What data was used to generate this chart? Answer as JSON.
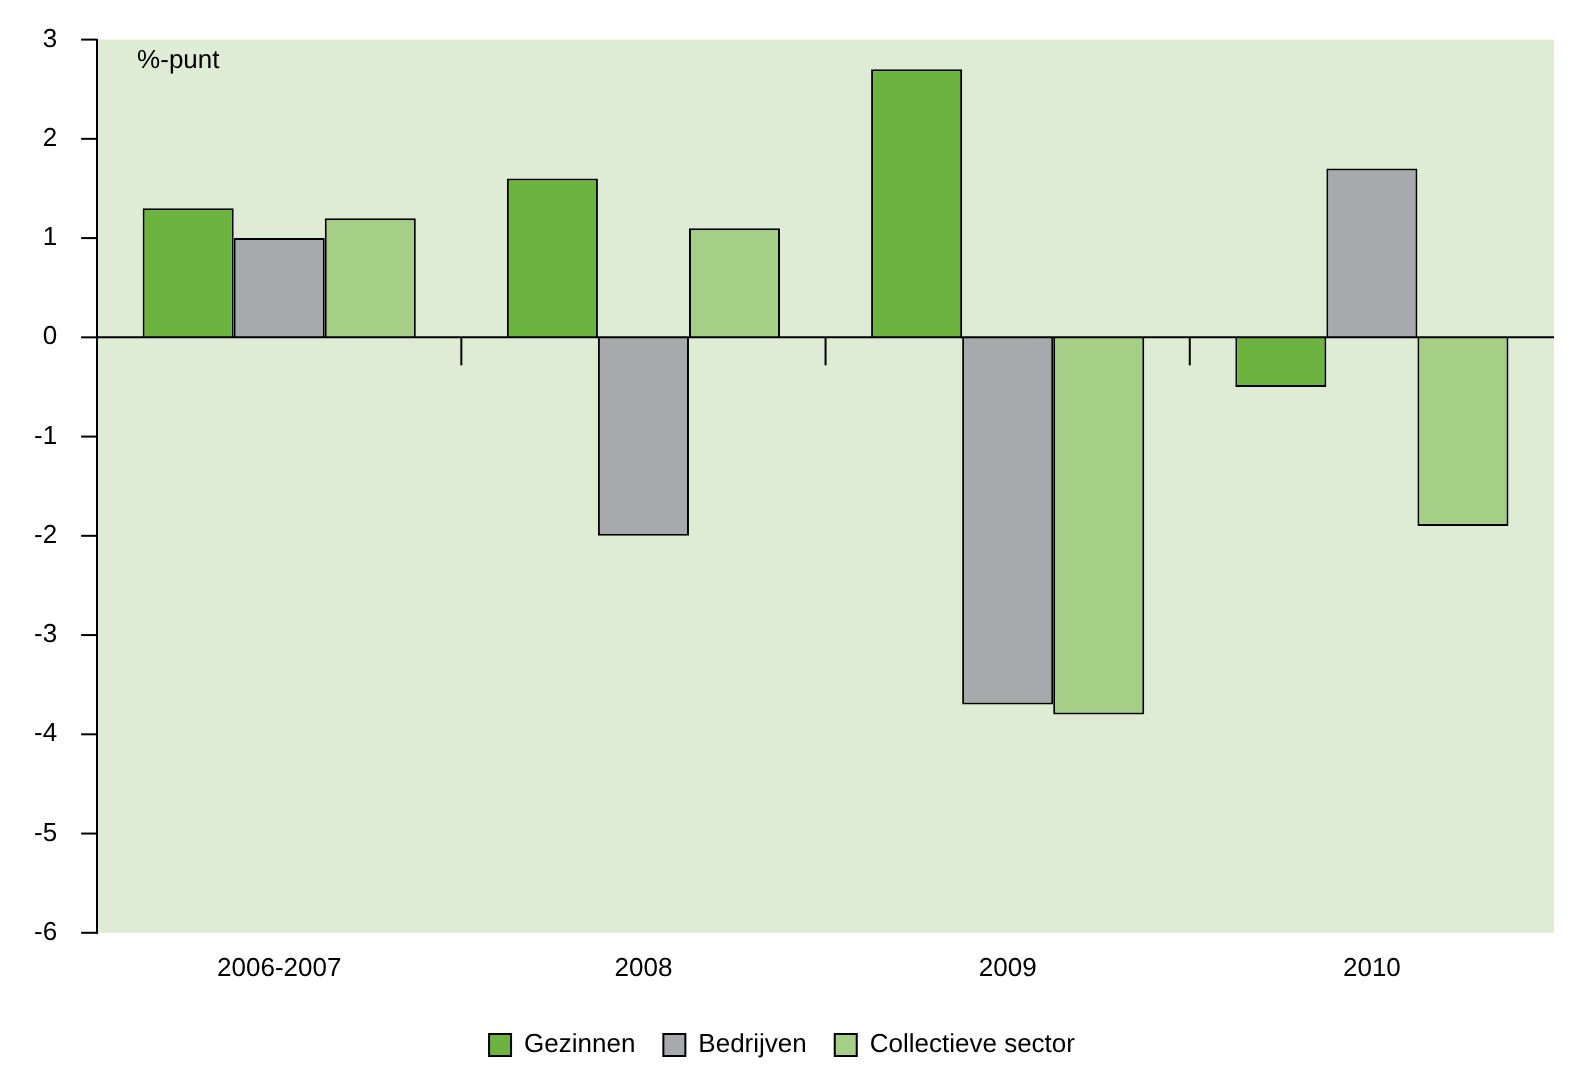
{
  "chart_data": {
    "type": "bar",
    "ylabel": "%-punt",
    "categories": [
      "2006-2007",
      "2008",
      "2009",
      "2010"
    ],
    "series": [
      {
        "name": "Gezinnen",
        "color": "#6db33f",
        "values": [
          1.3,
          1.6,
          2.7,
          -0.5
        ]
      },
      {
        "name": "Bedrijven",
        "color": "#a7a9ac",
        "values": [
          1.0,
          -2.0,
          -3.7,
          1.7
        ]
      },
      {
        "name": "Collectieve sector",
        "color": "#a5cf86",
        "values": [
          1.2,
          1.1,
          -3.8,
          -1.9
        ]
      }
    ],
    "ylim": [
      -6,
      3
    ],
    "yticks": [
      -6,
      -5,
      -4,
      -3,
      -2,
      -1,
      0,
      1,
      2,
      3
    ],
    "grid": false,
    "ref_lines": [
      {
        "axis": "y",
        "value": 0,
        "color": "#000000"
      }
    ],
    "legend": "bottom"
  }
}
